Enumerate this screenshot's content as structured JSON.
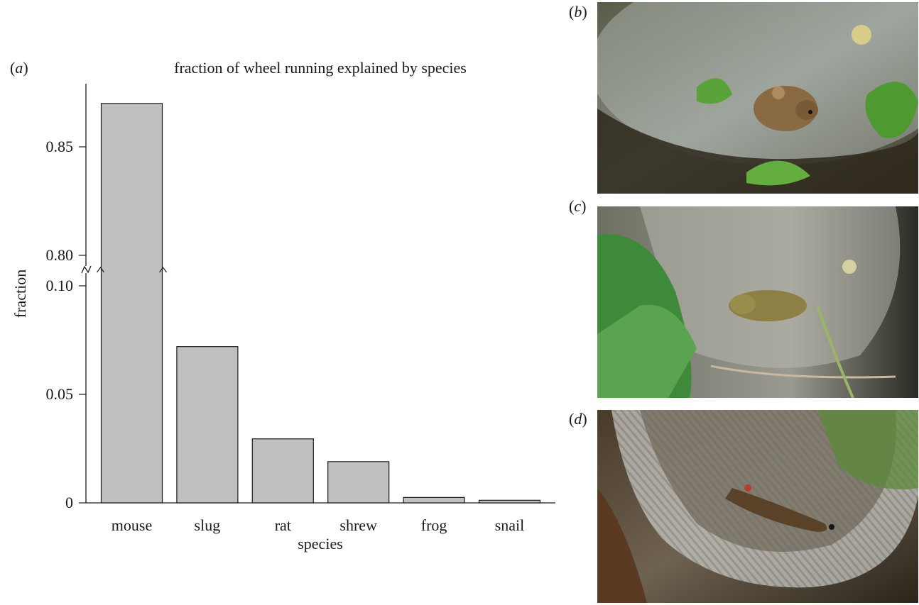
{
  "chart_data": {
    "type": "bar",
    "panel_label": "a",
    "title": "fraction of wheel running explained by species",
    "xlabel": "species",
    "ylabel": "fraction",
    "categories": [
      "mouse",
      "slug",
      "rat",
      "shrew",
      "frog",
      "snail"
    ],
    "values": [
      0.87,
      0.072,
      0.0295,
      0.019,
      0.0025,
      0.0012
    ],
    "axis_break": {
      "lower_max": 0.1,
      "upper_min": 0.8
    },
    "yticks": [
      {
        "value": 0,
        "label": "0"
      },
      {
        "value": 0.05,
        "label": "0.05"
      },
      {
        "value": 0.1,
        "label": "0.10"
      },
      {
        "value": 0.8,
        "label": "0.80"
      },
      {
        "value": 0.85,
        "label": "0.85"
      }
    ],
    "ylim": [
      0,
      0.88
    ],
    "bar_color": "#c0c0c0",
    "grid": false,
    "legend": false
  },
  "photos": [
    {
      "label": "b",
      "subject": "mouse-in-wheel"
    },
    {
      "label": "c",
      "subject": "frog-in-wheel"
    },
    {
      "label": "d",
      "subject": "slug-in-wheel"
    }
  ]
}
